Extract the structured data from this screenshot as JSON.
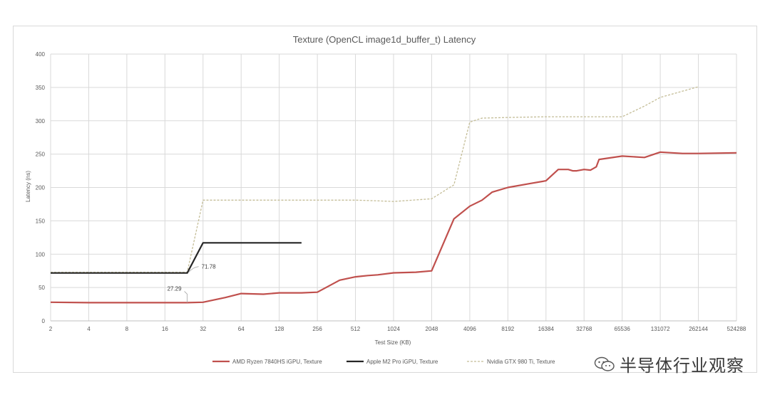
{
  "chart_data": {
    "type": "line",
    "title": "Texture (OpenCL image1d_buffer_t) Latency",
    "xlabel": "Test Size (KB)",
    "ylabel": "Latency (ns)",
    "x_scale": "log2",
    "x_ticks": [
      "2",
      "4",
      "8",
      "16",
      "32",
      "64",
      "128",
      "256",
      "512",
      "1024",
      "2048",
      "4096",
      "8192",
      "16384",
      "32768",
      "65536",
      "131072",
      "262144",
      "524288"
    ],
    "y_ticks": [
      0,
      50,
      100,
      150,
      200,
      250,
      300,
      350,
      400
    ],
    "ylim": [
      0,
      400
    ],
    "xlim": [
      2,
      524288
    ],
    "grid": true,
    "legend_position": "bottom",
    "series": [
      {
        "name": "AMD Ryzen 7840HS iGPU, Texture",
        "color": "#c0504d",
        "style": "solid",
        "points": [
          [
            2,
            28
          ],
          [
            4,
            27.29
          ],
          [
            8,
            27.29
          ],
          [
            16,
            27.29
          ],
          [
            24,
            27.29
          ],
          [
            32,
            28
          ],
          [
            48,
            35
          ],
          [
            64,
            41
          ],
          [
            96,
            40
          ],
          [
            128,
            42
          ],
          [
            192,
            42
          ],
          [
            256,
            43
          ],
          [
            384,
            61
          ],
          [
            512,
            66
          ],
          [
            640,
            68
          ],
          [
            768,
            69
          ],
          [
            1024,
            72
          ],
          [
            1536,
            73
          ],
          [
            2048,
            75
          ],
          [
            3072,
            153
          ],
          [
            4096,
            172
          ],
          [
            5120,
            181
          ],
          [
            6144,
            193
          ],
          [
            8192,
            200
          ],
          [
            12288,
            206
          ],
          [
            16384,
            210
          ],
          [
            20480,
            227
          ],
          [
            24576,
            227
          ],
          [
            26624,
            225
          ],
          [
            28672,
            225
          ],
          [
            32768,
            227
          ],
          [
            36864,
            226
          ],
          [
            40960,
            231
          ],
          [
            43008,
            242
          ],
          [
            65536,
            247
          ],
          [
            98304,
            245
          ],
          [
            131072,
            253
          ],
          [
            196608,
            251
          ],
          [
            262144,
            251
          ],
          [
            524288,
            252
          ]
        ]
      },
      {
        "name": "Apple M2 Pro iGPU, Texture",
        "color": "#262626",
        "style": "solid",
        "points": [
          [
            2,
            71.78
          ],
          [
            4,
            71.78
          ],
          [
            8,
            71.78
          ],
          [
            16,
            71.78
          ],
          [
            24,
            71.78
          ],
          [
            32,
            117
          ],
          [
            48,
            117
          ],
          [
            64,
            117
          ],
          [
            96,
            117
          ],
          [
            128,
            117
          ],
          [
            192,
            117
          ]
        ]
      },
      {
        "name": "Nvidia GTX 980 Ti, Texture",
        "color": "#c4bd97",
        "style": "dashed",
        "points": [
          [
            2,
            73
          ],
          [
            4,
            73
          ],
          [
            8,
            73
          ],
          [
            16,
            73
          ],
          [
            24,
            73
          ],
          [
            32,
            181
          ],
          [
            64,
            181
          ],
          [
            128,
            181
          ],
          [
            256,
            181
          ],
          [
            512,
            181
          ],
          [
            768,
            180
          ],
          [
            1024,
            179
          ],
          [
            2048,
            183
          ],
          [
            3072,
            204
          ],
          [
            4096,
            298
          ],
          [
            5120,
            304
          ],
          [
            8192,
            305
          ],
          [
            16384,
            306
          ],
          [
            32768,
            306
          ],
          [
            65536,
            306
          ],
          [
            98304,
            322
          ],
          [
            131072,
            335
          ],
          [
            262144,
            351
          ]
        ]
      }
    ],
    "annotations": [
      {
        "text": "71.78",
        "x": 24,
        "y": 71.78
      },
      {
        "text": "27.29",
        "x": 24,
        "y": 27.29
      }
    ]
  },
  "watermark": {
    "text": "半导体行业观察",
    "icon": "wechat-icon"
  }
}
